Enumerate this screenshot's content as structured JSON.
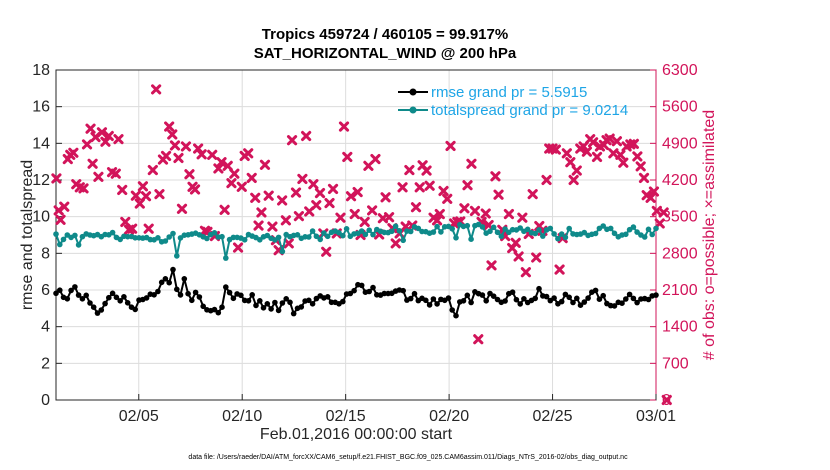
{
  "colors": {
    "background": "#ffffff",
    "rmse": "#000000",
    "totalspread": "#0f8a8a",
    "obs": "#d2145a",
    "legend_text": "#1ea5e6",
    "grid": "#dcdcdc"
  },
  "chart_data": {
    "type": "line",
    "title_line1": "Tropics 459724 / 460105 = 99.917%",
    "title_line2": "SAT_HORIZONTAL_WIND @ 200 hPa",
    "xlabel": "Feb.01,2016 00:00:00 start",
    "ylabel_left": "rmse and totalspread",
    "ylabel_right": "# of obs: o=possible; ×=assimilated",
    "footnote": "data file: /Users/raeder/DAI/ATM_forcXX/CAM6_setup/f.e21.FHIST_BGC.f09_025.CAM6assim.011/Diags_NTrS_2016-02/obs_diag_output.nc",
    "x_range_days": [
      1,
      30
    ],
    "ylim_left": [
      0,
      18
    ],
    "ylim_right": [
      0,
      6300
    ],
    "left_ticks": [
      "0",
      "2",
      "4",
      "6",
      "8",
      "10",
      "12",
      "14",
      "16",
      "18"
    ],
    "right_ticks": [
      "0",
      "700",
      "1400",
      "2100",
      "2800",
      "3500",
      "4200",
      "4900",
      "5600",
      "6300"
    ],
    "x_tick_labels": [
      {
        "day": 5,
        "label": "02/05"
      },
      {
        "day": 10,
        "label": "02/10"
      },
      {
        "day": 15,
        "label": "02/15"
      },
      {
        "day": 20,
        "label": "02/20"
      },
      {
        "day": 25,
        "label": "02/25"
      },
      {
        "day": 30,
        "label": "03/01"
      }
    ],
    "grid": true,
    "legend_position": "top-right",
    "series": [
      {
        "name": "rmse grand pr = 5.5915",
        "axis": "left",
        "marker": "dot",
        "values": [
          5.82,
          5.99,
          5.6,
          5.52,
          5.98,
          6.17,
          5.72,
          5.52,
          5.71,
          5.29,
          5.06,
          4.74,
          4.91,
          5.26,
          5.58,
          5.82,
          5.6,
          5.41,
          5.63,
          5.3,
          5.06,
          4.94,
          5.45,
          5.48,
          5.57,
          5.77,
          5.74,
          5.92,
          6.42,
          6.61,
          6.4,
          7.11,
          6.04,
          5.73,
          6.61,
          5.8,
          5.44,
          5.87,
          5.62,
          5.11,
          4.92,
          4.87,
          4.93,
          4.76,
          5.06,
          6.16,
          5.86,
          5.55,
          5.79,
          5.71,
          5.43,
          5.41,
          5.74,
          5.16,
          5.41,
          5.03,
          5.25,
          4.97,
          5.32,
          4.89,
          5.29,
          5.52,
          5.33,
          4.71,
          5.0,
          5.08,
          5.4,
          5.44,
          5.25,
          5.53,
          5.68,
          5.57,
          5.63,
          5.33,
          5.33,
          5.25,
          5.37,
          5.78,
          5.81,
          5.96,
          6.29,
          6.25,
          5.88,
          5.92,
          6.13,
          5.74,
          5.72,
          5.81,
          5.81,
          5.82,
          5.94,
          6.0,
          5.96,
          5.45,
          5.53,
          5.8,
          5.42,
          5.55,
          5.44,
          5.19,
          5.51,
          5.24,
          5.49,
          5.44,
          5.56,
          4.91,
          4.6,
          5.35,
          5.41,
          5.71,
          5.32,
          5.9,
          5.8,
          5.72,
          5.41,
          5.81,
          5.66,
          5.48,
          5.33,
          5.4,
          5.8,
          5.88,
          5.47,
          5.24,
          5.52,
          5.32,
          5.43,
          5.54,
          6.07,
          5.68,
          5.64,
          5.42,
          5.56,
          5.25,
          5.37,
          5.76,
          5.6,
          5.32,
          5.55,
          5.17,
          5.34,
          5.56,
          5.88,
          5.98,
          5.5,
          5.69,
          5.26,
          5.15,
          5.13,
          5.33,
          5.28,
          5.51,
          5.76,
          5.54,
          5.31,
          5.51,
          5.53,
          5.48,
          5.68,
          5.72
        ]
      },
      {
        "name": "totalspread grand pr = 9.0214",
        "axis": "left",
        "marker": "dot",
        "values": [
          9.05,
          8.48,
          8.76,
          9.0,
          8.87,
          8.98,
          8.46,
          8.91,
          9.06,
          9.0,
          8.96,
          9.02,
          8.91,
          9.03,
          9.01,
          9.13,
          8.87,
          8.76,
          8.93,
          8.91,
          8.92,
          8.85,
          8.85,
          8.83,
          8.86,
          8.75,
          8.74,
          8.85,
          8.63,
          8.67,
          8.89,
          9.08,
          7.86,
          8.84,
          8.99,
          9.01,
          9.05,
          9.1,
          9.01,
          8.9,
          8.81,
          9.02,
          9.12,
          8.89,
          8.91,
          7.74,
          8.75,
          8.87,
          8.87,
          8.83,
          8.74,
          9.02,
          8.94,
          8.86,
          8.74,
          8.9,
          8.97,
          8.82,
          8.73,
          8.87,
          8.1,
          9.02,
          8.91,
          8.98,
          9.01,
          8.82,
          8.9,
          8.89,
          9.21,
          8.93,
          8.76,
          9.11,
          8.93,
          9.15,
          9.21,
          9.12,
          8.96,
          9.34,
          8.93,
          9.06,
          9.09,
          9.21,
          9.03,
          9.26,
          9.02,
          9.3,
          9.2,
          9.14,
          9.13,
          9.2,
          9.48,
          9.23,
          8.71,
          9.21,
          9.19,
          9.45,
          9.36,
          9.19,
          9.18,
          9.1,
          9.16,
          9.46,
          9.17,
          9.45,
          9.47,
          9.34,
          8.85,
          9.56,
          9.47,
          9.51,
          8.77,
          9.51,
          9.58,
          9.44,
          9.1,
          9.2,
          9.42,
          9.15,
          8.93,
          9.32,
          9.15,
          9.29,
          9.28,
          9.38,
          9.2,
          9.31,
          9.12,
          9.08,
          9.28,
          8.94,
          9.28,
          9.36,
          9.06,
          8.8,
          9.05,
          8.87,
          9.35,
          9.06,
          9.03,
          9.05,
          9.13,
          8.98,
          9.04,
          9.08,
          9.36,
          9.49,
          9.31,
          9.36,
          9.09,
          8.9,
          9.0,
          9.04,
          9.29,
          9.43,
          9.16,
          9.0,
          8.89,
          9.31,
          9.03,
          9.36
        ]
      },
      {
        "name": "obs assimilated",
        "axis": "right",
        "marker": "x",
        "points": [
          [
            1.02,
            4230
          ],
          [
            1.13,
            3620
          ],
          [
            1.22,
            3440
          ],
          [
            1.4,
            3690
          ],
          [
            1.57,
            4600
          ],
          [
            1.69,
            4680
          ],
          [
            1.84,
            4720
          ],
          [
            1.98,
            4120
          ],
          [
            2.15,
            4060
          ],
          [
            2.33,
            4040
          ],
          [
            2.5,
            4880
          ],
          [
            2.67,
            5180
          ],
          [
            2.77,
            4510
          ],
          [
            2.91,
            5020
          ],
          [
            3.05,
            4260
          ],
          [
            3.22,
            5110
          ],
          [
            3.39,
            4930
          ],
          [
            3.55,
            5040
          ],
          [
            3.71,
            4350
          ],
          [
            3.89,
            4320
          ],
          [
            4.02,
            4980
          ],
          [
            4.2,
            4010
          ],
          [
            4.35,
            3400
          ],
          [
            4.53,
            3250
          ],
          [
            4.68,
            3270
          ],
          [
            4.86,
            3900
          ],
          [
            5.05,
            3750
          ],
          [
            5.2,
            4080
          ],
          [
            5.35,
            3890
          ],
          [
            5.48,
            3270
          ],
          [
            5.68,
            4390
          ],
          [
            5.84,
            5930
          ],
          [
            6.0,
            3930
          ],
          [
            6.17,
            4590
          ],
          [
            6.32,
            4660
          ],
          [
            6.47,
            5220
          ],
          [
            6.62,
            5070
          ],
          [
            6.75,
            4860
          ],
          [
            6.92,
            4620
          ],
          [
            7.09,
            3650
          ],
          [
            7.28,
            4840
          ],
          [
            7.45,
            4310
          ],
          [
            7.6,
            4070
          ],
          [
            7.72,
            4020
          ],
          [
            7.87,
            4800
          ],
          [
            8.04,
            4690
          ],
          [
            8.2,
            3230
          ],
          [
            8.32,
            3210
          ],
          [
            8.55,
            4680
          ],
          [
            8.68,
            3130
          ],
          [
            8.85,
            4420
          ],
          [
            9.0,
            4540
          ],
          [
            9.15,
            3630
          ],
          [
            9.3,
            4470
          ],
          [
            9.48,
            4140
          ],
          [
            9.62,
            4320
          ],
          [
            9.8,
            2910
          ],
          [
            9.98,
            4070
          ],
          [
            10.12,
            4660
          ],
          [
            10.29,
            4710
          ],
          [
            10.46,
            4240
          ],
          [
            10.63,
            3860
          ],
          [
            10.79,
            3330
          ],
          [
            10.93,
            3580
          ],
          [
            11.1,
            4490
          ],
          [
            11.28,
            3900
          ],
          [
            11.46,
            3310
          ],
          [
            11.63,
            3050
          ],
          [
            11.76,
            2860
          ],
          [
            11.93,
            3810
          ],
          [
            12.11,
            3430
          ],
          [
            12.25,
            2990
          ],
          [
            12.41,
            4960
          ],
          [
            12.6,
            3960
          ],
          [
            12.74,
            3510
          ],
          [
            12.91,
            4220
          ],
          [
            13.09,
            5040
          ],
          [
            13.24,
            3600
          ],
          [
            13.44,
            4120
          ],
          [
            13.58,
            3720
          ],
          [
            13.76,
            3950
          ],
          [
            13.92,
            3180
          ],
          [
            14.06,
            2830
          ],
          [
            14.22,
            3760
          ],
          [
            14.39,
            4030
          ],
          [
            14.57,
            3180
          ],
          [
            14.75,
            3480
          ],
          [
            14.92,
            5220
          ],
          [
            15.08,
            4640
          ],
          [
            15.26,
            3890
          ],
          [
            15.44,
            3550
          ],
          [
            15.58,
            3970
          ],
          [
            15.72,
            3150
          ],
          [
            15.92,
            3400
          ],
          [
            16.1,
            4470
          ],
          [
            16.28,
            3620
          ],
          [
            16.44,
            4600
          ],
          [
            16.62,
            3160
          ],
          [
            16.8,
            3470
          ],
          [
            16.93,
            3870
          ],
          [
            17.1,
            3490
          ],
          [
            17.26,
            3280
          ],
          [
            17.42,
            2990
          ],
          [
            17.61,
            3180
          ],
          [
            17.75,
            4060
          ],
          [
            17.9,
            3310
          ],
          [
            18.08,
            4390
          ],
          [
            18.22,
            3330
          ],
          [
            18.4,
            3680
          ],
          [
            18.58,
            4060
          ],
          [
            18.72,
            4480
          ],
          [
            18.91,
            4380
          ],
          [
            19.06,
            4090
          ],
          [
            19.25,
            3480
          ],
          [
            19.42,
            3430
          ],
          [
            19.55,
            3550
          ],
          [
            19.73,
            3990
          ],
          [
            19.91,
            3840
          ],
          [
            20.07,
            4850
          ],
          [
            20.24,
            3370
          ],
          [
            20.4,
            3400
          ],
          [
            20.54,
            3410
          ],
          [
            20.74,
            3660
          ],
          [
            20.89,
            4100
          ],
          [
            21.08,
            4510
          ],
          [
            21.25,
            3610
          ],
          [
            21.41,
            1160
          ],
          [
            21.57,
            3400
          ],
          [
            21.77,
            3560
          ],
          [
            21.91,
            3340
          ],
          [
            22.05,
            2570
          ],
          [
            22.24,
            4270
          ],
          [
            22.39,
            3920
          ],
          [
            22.57,
            3250
          ],
          [
            22.71,
            3130
          ],
          [
            22.89,
            3550
          ],
          [
            23.05,
            2900
          ],
          [
            23.22,
            3000
          ],
          [
            23.36,
            2740
          ],
          [
            23.54,
            3480
          ],
          [
            23.71,
            2440
          ],
          [
            23.85,
            3170
          ],
          [
            24.04,
            3930
          ],
          [
            24.21,
            2720
          ],
          [
            24.36,
            3320
          ],
          [
            24.51,
            3230
          ],
          [
            24.71,
            4200
          ],
          [
            24.84,
            4800
          ],
          [
            25.0,
            4800
          ],
          [
            25.16,
            4780
          ],
          [
            25.34,
            2490
          ],
          [
            25.49,
            3090
          ],
          [
            25.69,
            4710
          ],
          [
            25.86,
            4540
          ],
          [
            26.02,
            4200
          ],
          [
            26.17,
            4380
          ],
          [
            26.34,
            4800
          ],
          [
            26.5,
            4840
          ],
          [
            26.66,
            4740
          ],
          [
            26.82,
            4980
          ],
          [
            26.96,
            4920
          ],
          [
            27.15,
            4640
          ],
          [
            27.29,
            4840
          ],
          [
            27.48,
            4870
          ],
          [
            27.61,
            4960
          ],
          [
            27.76,
            4990
          ],
          [
            27.94,
            4710
          ],
          [
            28.11,
            4940
          ],
          [
            28.28,
            4680
          ],
          [
            28.42,
            4530
          ],
          [
            28.58,
            4840
          ],
          [
            28.76,
            4880
          ],
          [
            28.93,
            4890
          ],
          [
            29.1,
            4650
          ],
          [
            29.26,
            4460
          ],
          [
            29.42,
            4240
          ],
          [
            29.55,
            3910
          ],
          [
            29.74,
            3860
          ],
          [
            29.9,
            3980
          ],
          [
            30.04,
            3610
          ],
          [
            30.18,
            3370
          ],
          [
            30.37,
            3580
          ],
          [
            30.52,
            0
          ]
        ]
      }
    ]
  }
}
